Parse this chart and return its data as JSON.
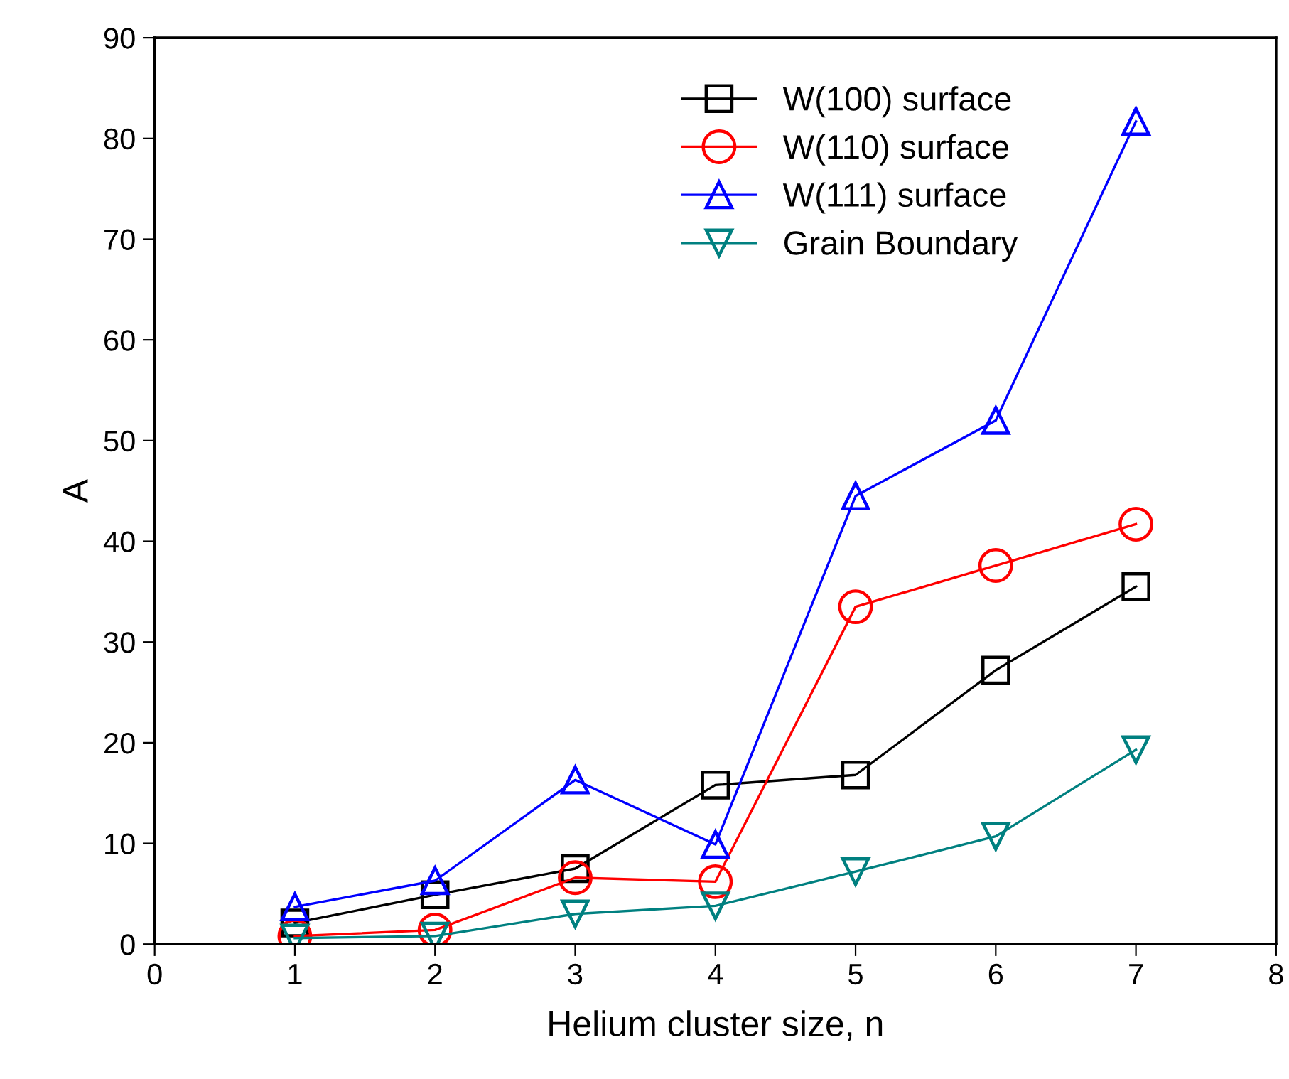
{
  "chart_data": {
    "type": "line",
    "xlabel": "Helium cluster size, n",
    "ylabel": "A",
    "x": [
      1,
      2,
      3,
      4,
      5,
      6,
      7
    ],
    "series": [
      {
        "name": "W(100) surface",
        "color": "#000000",
        "marker": "square",
        "values": [
          2.1,
          4.9,
          7.5,
          15.8,
          16.8,
          27.2,
          35.5
        ]
      },
      {
        "name": "W(110) surface",
        "color": "#ff0000",
        "marker": "circle",
        "values": [
          0.8,
          1.4,
          6.6,
          6.2,
          33.5,
          37.6,
          41.7
        ]
      },
      {
        "name": "W(111) surface",
        "color": "#0000ff",
        "marker": "triangle",
        "values": [
          3.7,
          6.3,
          16.3,
          9.9,
          44.5,
          52.0,
          81.7
        ]
      },
      {
        "name": "Grain Boundary",
        "color": "#008080",
        "marker": "triangle_down",
        "values": [
          0.6,
          0.8,
          3.0,
          3.8,
          7.2,
          10.7,
          19.3
        ]
      }
    ],
    "xlim": [
      0,
      8
    ],
    "xticks": [
      0,
      1,
      2,
      3,
      4,
      5,
      6,
      7,
      8
    ],
    "ylim": [
      0,
      90
    ],
    "yticks": [
      0,
      10,
      20,
      30,
      40,
      50,
      60,
      70,
      80,
      90
    ],
    "grid": false,
    "legend": "top",
    "line_style": "solid"
  }
}
